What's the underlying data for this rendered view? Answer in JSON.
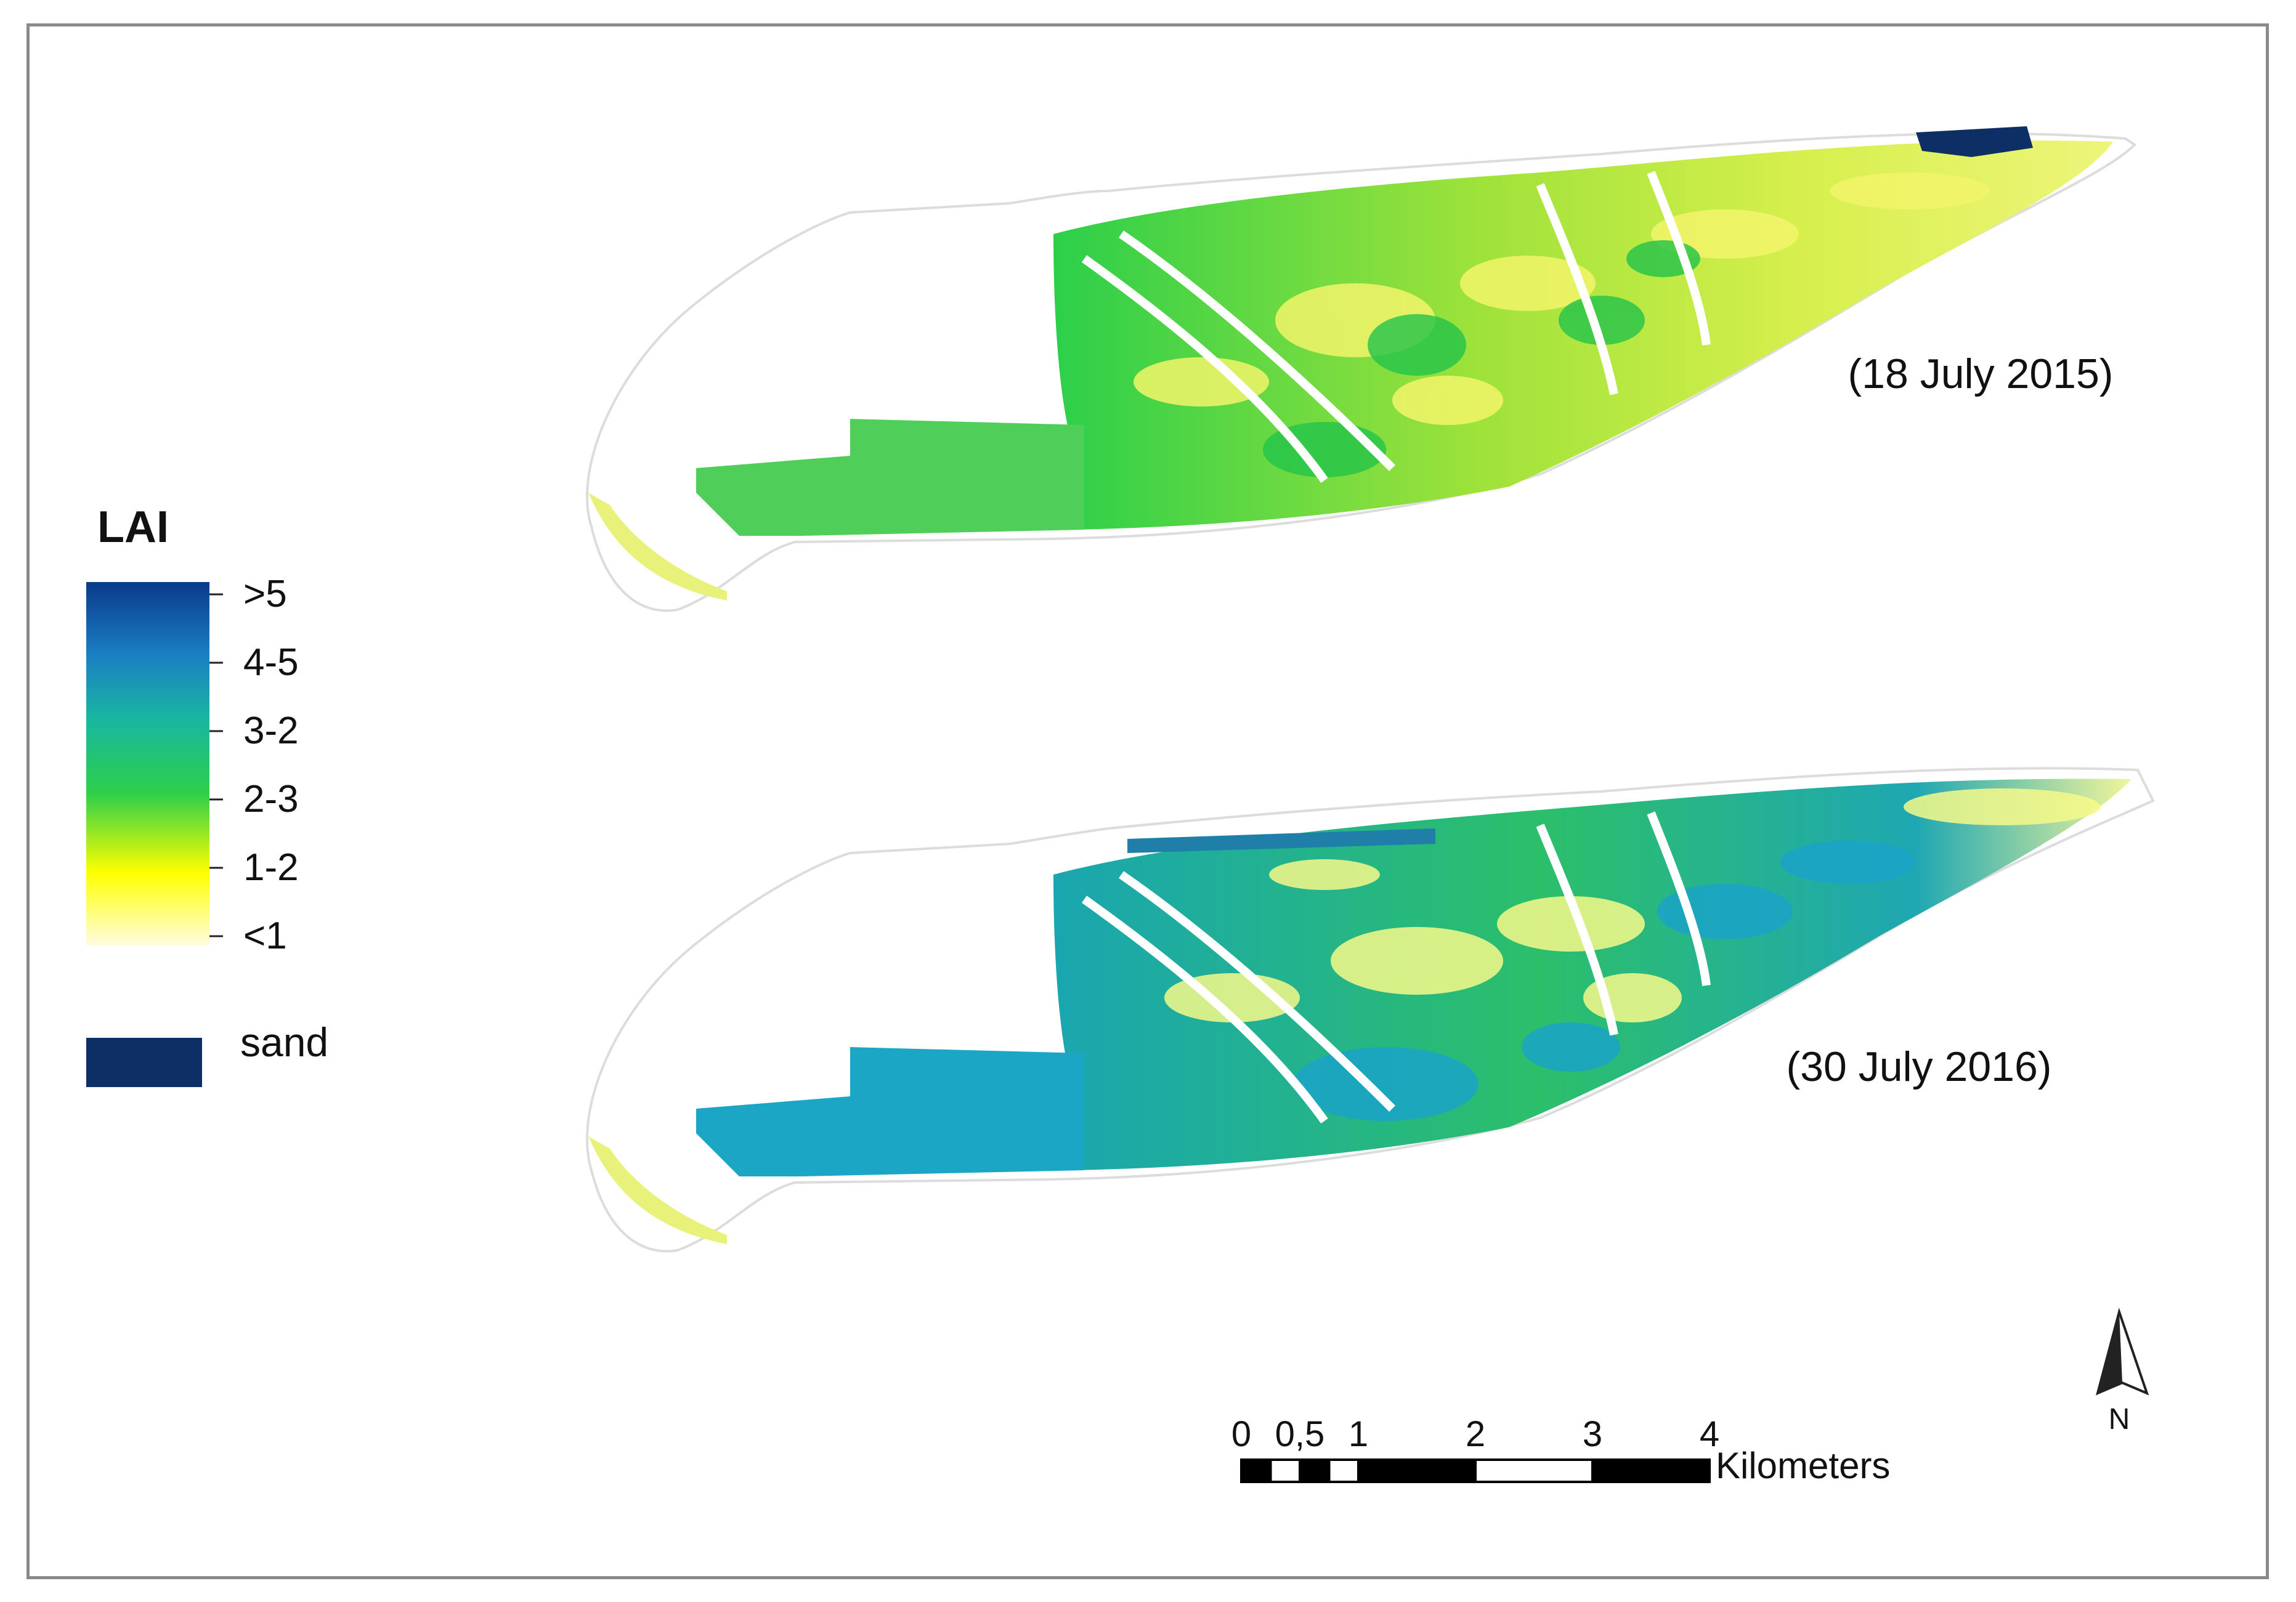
{
  "legend": {
    "title": "LAI",
    "classes": [
      {
        "label": ">5",
        "color": "#0a3a8a"
      },
      {
        "label": "4-5",
        "color": "#1a7fc4"
      },
      {
        "label": "3-2",
        "color": "#19b7a0"
      },
      {
        "label": "2-3",
        "color": "#2ccf4a"
      },
      {
        "label": "1-2",
        "color": "#ffff00"
      },
      {
        "label": "<1",
        "color": "#fffde0"
      }
    ],
    "sand": {
      "label": "sand",
      "color": "#0e2f66"
    }
  },
  "maps": [
    {
      "date_label": "(18 July 2015)"
    },
    {
      "date_label": "(30 July 2016)"
    }
  ],
  "scale_bar": {
    "ticks": [
      "0",
      "0,5",
      "1",
      "2",
      "3",
      "4"
    ],
    "unit": "Kilometers"
  },
  "north_arrow": {
    "label": "N"
  }
}
